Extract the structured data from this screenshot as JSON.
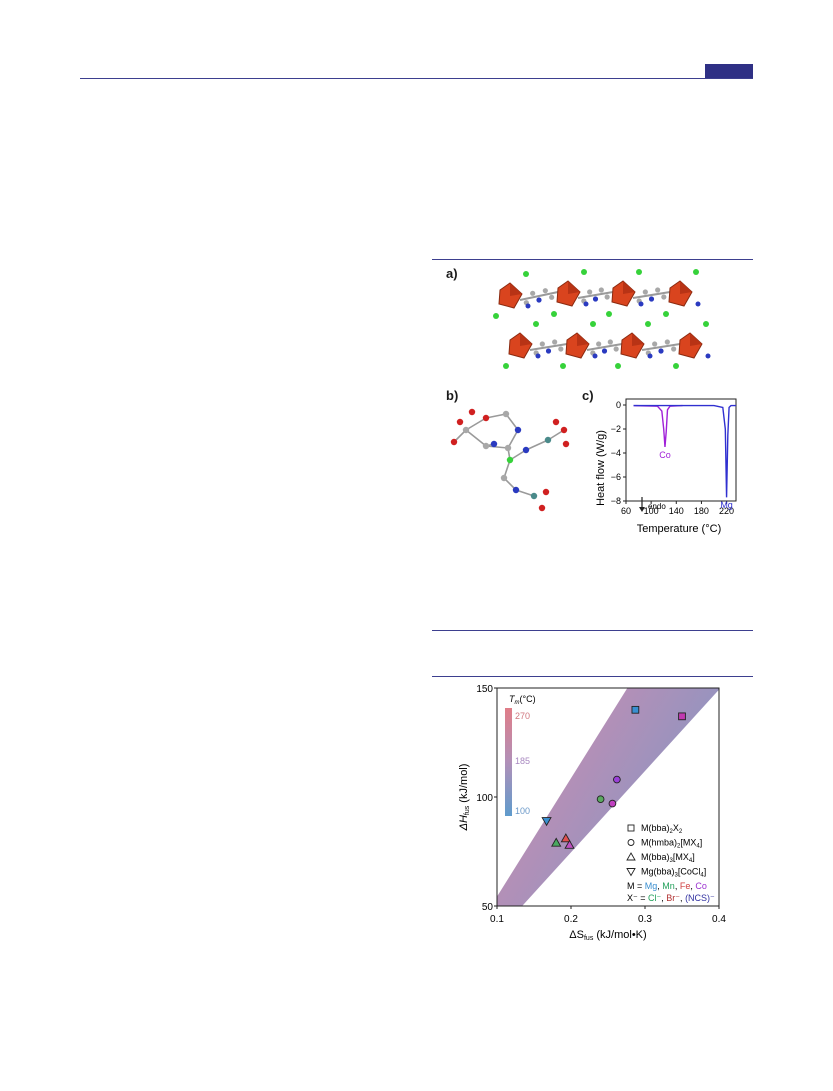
{
  "figure_top": {
    "panel_a_label": "a)",
    "panel_b_label": "b)",
    "panel_c_label": "c)"
  },
  "panel_c": {
    "xlabel": "Temperature (°C)",
    "ylabel": "Heat flow (W/g)",
    "endo_label": "endo",
    "x_ticks": [
      "60",
      "100",
      "140",
      "180",
      "220"
    ],
    "y_ticks": [
      "0",
      "−2",
      "−4",
      "−6",
      "−8"
    ],
    "series_labels": [
      {
        "text": "Co",
        "color": "#a020d8"
      },
      {
        "text": "Mg",
        "color": "#3030d0"
      }
    ]
  },
  "panel_d": {
    "xlabel_pre": "ΔS",
    "xlabel_sub": "fus",
    "xlabel_post": " (kJ/mol•K)",
    "ylabel_pre": "ΔH",
    "ylabel_sub": "fus",
    "ylabel_post": " (kJ/mol)",
    "x_ticks": [
      "0.1",
      "0.2",
      "0.3",
      "0.4"
    ],
    "y_ticks": [
      "150",
      "100",
      "50"
    ],
    "colorbar_title": "T",
    "colorbar_title_sub": "m",
    "colorbar_title_post": "(°C)",
    "colorbar_ticks": [
      "270",
      "185",
      "100"
    ],
    "legend": [
      {
        "symbol": "square",
        "text": "M(bba)",
        "sub": "2",
        "text2": "X",
        "sub2": "2",
        "text3": ""
      },
      {
        "symbol": "circle",
        "text": "M(hmba)",
        "sub": "2",
        "text2": "[MX",
        "sub2": "4",
        "text3": "]"
      },
      {
        "symbol": "triangle",
        "text": "M(bba)",
        "sub": "3",
        "text2": "[MX",
        "sub2": "4",
        "text3": "]"
      },
      {
        "symbol": "triangle-down",
        "text": "Mg(bba)",
        "sub": "3",
        "text2": "[CoCl",
        "sub2": "4",
        "text3": "]"
      }
    ],
    "metal_line": {
      "prefix": "M = ",
      "items": [
        {
          "text": "Mg",
          "color": "#3a8fd0"
        },
        {
          "text": "Mn",
          "color": "#22a05a"
        },
        {
          "text": "Fe",
          "color": "#d04040"
        },
        {
          "text": "Co",
          "color": "#9a30d0"
        }
      ]
    },
    "anion_line": {
      "prefix": "X⁻ = ",
      "items": [
        {
          "text": "Cl⁻",
          "color": "#22a05a"
        },
        {
          "text": "Br⁻",
          "color": "#b03030"
        },
        {
          "text": "(NCS)⁻",
          "color": "#3030a0"
        }
      ]
    }
  },
  "chart_data": [
    {
      "type": "line",
      "panel": "c",
      "xlabel": "Temperature (°C)",
      "ylabel": "Heat flow (W/g)",
      "xlim": [
        60,
        235
      ],
      "ylim": [
        -8,
        0.5
      ],
      "series": [
        {
          "name": "Co",
          "color": "#a020d8",
          "x": [
            72,
            110,
            117,
            120,
            122,
            124,
            126,
            130,
            150
          ],
          "y": [
            -0.05,
            -0.1,
            -0.5,
            -2.0,
            -3.5,
            -2.2,
            -0.4,
            -0.1,
            -0.05
          ]
        },
        {
          "name": "Mg",
          "color": "#3030d0",
          "x": [
            72,
            200,
            214,
            218,
            220,
            222,
            224,
            227,
            230,
            235
          ],
          "y": [
            -0.05,
            -0.05,
            -0.2,
            -2.0,
            -7.7,
            -2.5,
            -0.2,
            -0.05,
            -0.05,
            -0.05
          ]
        }
      ]
    },
    {
      "type": "scatter",
      "panel": "d",
      "xlabel": "ΔSfus (kJ/mol•K)",
      "ylabel": "ΔHfus (kJ/mol)",
      "xlim": [
        0.1,
        0.4
      ],
      "ylim": [
        50,
        150
      ],
      "colorbar": {
        "label": "Tm(°C)",
        "range": [
          100,
          270
        ]
      },
      "points": [
        {
          "x": 0.287,
          "y": 140,
          "symbol": "square",
          "fill": "#3a8fd0"
        },
        {
          "x": 0.35,
          "y": 137,
          "symbol": "square",
          "fill": "#c03ab0"
        },
        {
          "x": 0.262,
          "y": 108,
          "symbol": "circle",
          "fill": "#9a40d8"
        },
        {
          "x": 0.24,
          "y": 99,
          "symbol": "circle",
          "fill": "#5aa860"
        },
        {
          "x": 0.256,
          "y": 97,
          "symbol": "circle",
          "fill": "#c040c0"
        },
        {
          "x": 0.167,
          "y": 89,
          "symbol": "triangle-down",
          "fill": "#3a8fd0"
        },
        {
          "x": 0.193,
          "y": 81,
          "symbol": "triangle",
          "fill": "#e05050"
        },
        {
          "x": 0.18,
          "y": 79,
          "symbol": "triangle",
          "fill": "#4aa860"
        },
        {
          "x": 0.198,
          "y": 78,
          "symbol": "triangle",
          "fill": "#c050c0"
        }
      ]
    }
  ]
}
